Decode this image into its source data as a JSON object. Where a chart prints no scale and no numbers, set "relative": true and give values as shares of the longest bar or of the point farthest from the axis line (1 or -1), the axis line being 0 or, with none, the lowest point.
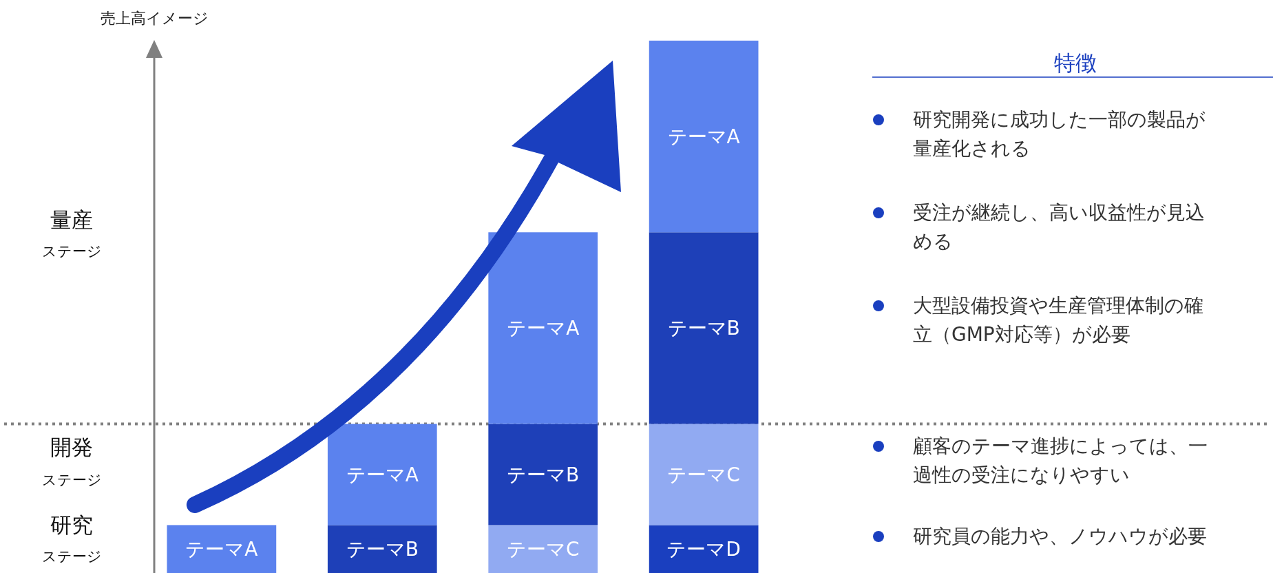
{
  "chart_data": [
    {
      "type": "bar",
      "stacked": true,
      "relative": true,
      "ylabel": "売上高イメージ",
      "categories": [
        null,
        null,
        null,
        null
      ],
      "series": [
        {
          "name": "テーマD",
          "color": "#1a3fbf",
          "values": [
            null,
            null,
            null,
            0.09
          ]
        },
        {
          "name": "テーマC",
          "color": "#91aaf2",
          "values": [
            null,
            null,
            0.09,
            0.19
          ]
        },
        {
          "name": "テーマB",
          "color": "#1e40b8",
          "values": [
            null,
            0.09,
            0.19,
            0.36
          ]
        },
        {
          "name": "テーマA",
          "color": "#5b82ee",
          "values": [
            0.09,
            0.19,
            0.36,
            0.36
          ]
        }
      ],
      "ref_lines": [
        {
          "axis": "y",
          "value": 0.28,
          "line_style": "dotted",
          "color": "#808080"
        }
      ],
      "annotations": [
        "量産",
        "ステージ",
        "開発",
        "ステージ",
        "研究",
        "ステージ"
      ]
    },
    {
      "type": "other",
      "title": "特徴",
      "annotations": [
        "研究開発に成功した一部の製品が量産化される",
        "受注が継続し、高い収益性が見込める",
        "大型設備投資や生産管理体制の確立（GMP対応等）が必要",
        "顧客のテーマ進捗によっては、一過性の受注になりやすい",
        "研究員の能力や、ノウハウが必要"
      ]
    }
  ]
}
